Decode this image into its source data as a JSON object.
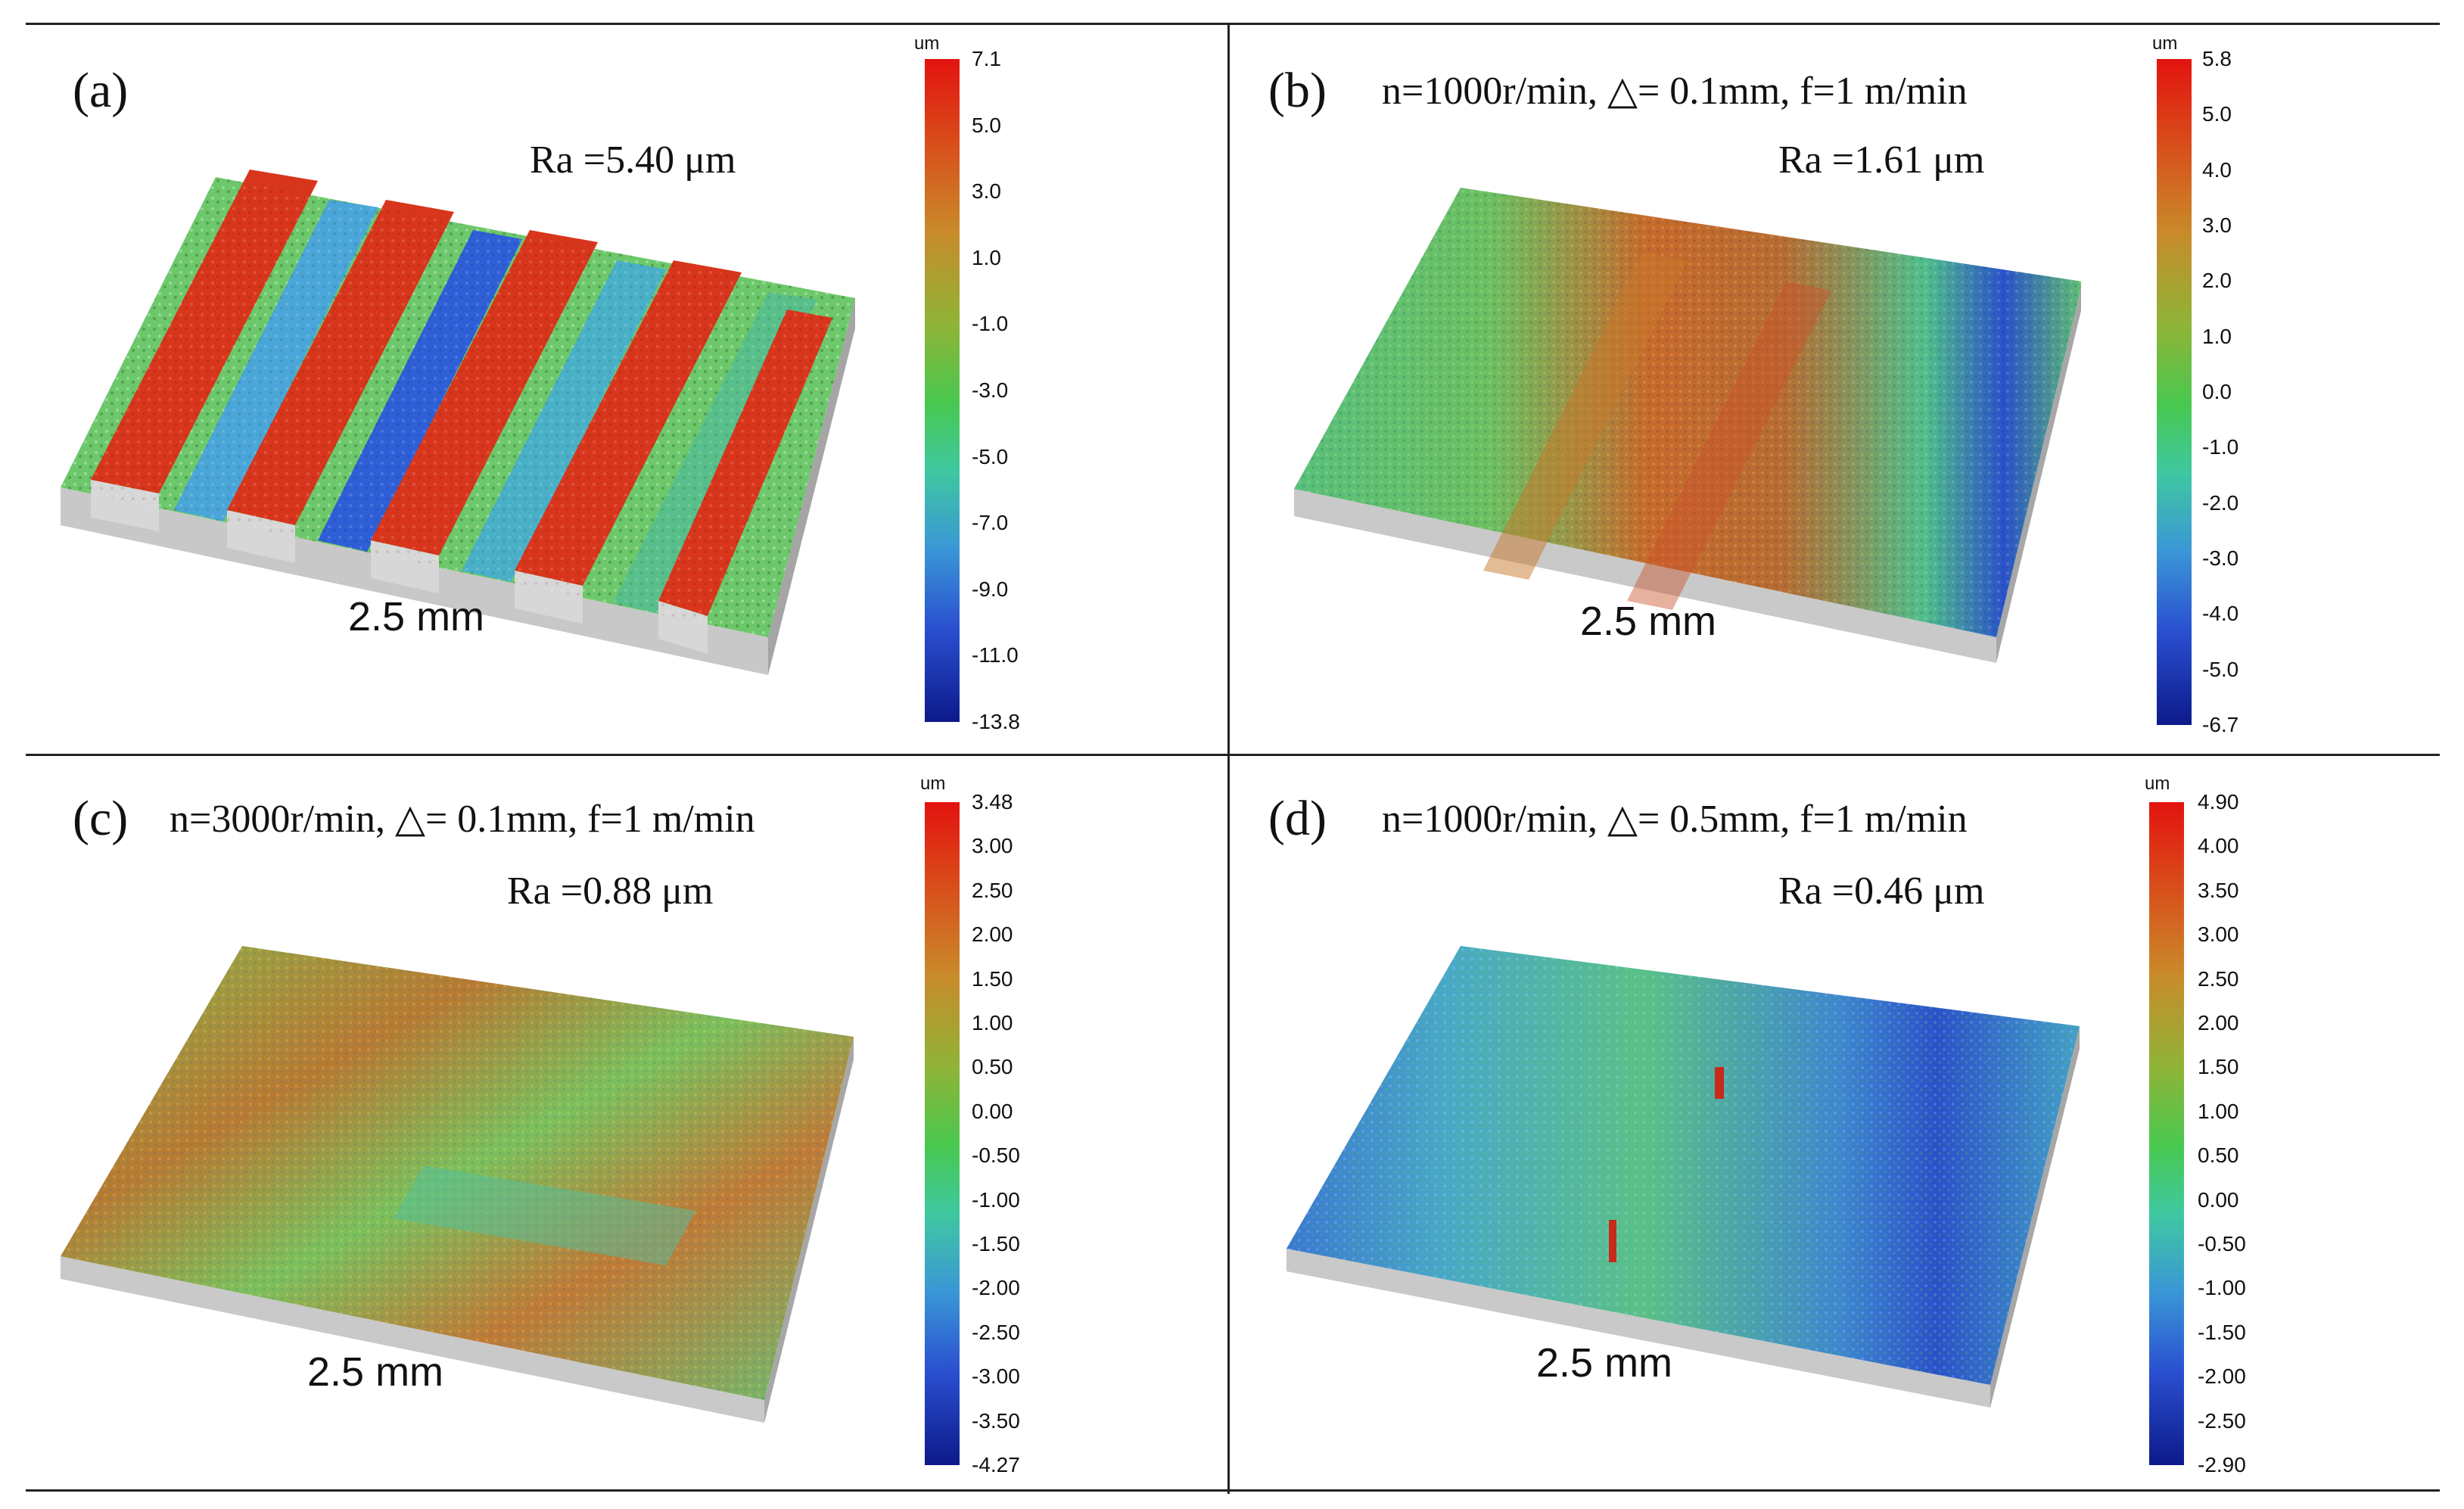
{
  "figure": {
    "panels": [
      {
        "label": "(a)",
        "params": "",
        "ra": "Ra =5.40 μm",
        "scale": "2.5 mm",
        "colorbar": {
          "unit": "um",
          "ticks": [
            "7.1",
            "5.0",
            "3.0",
            "1.0",
            "-1.0",
            "-3.0",
            "-5.0",
            "-7.0",
            "-9.0",
            "-11.0",
            "-13.8"
          ]
        }
      },
      {
        "label": "(b)",
        "params": "n=1000r/min, △= 0.1mm, f=1 m/min",
        "ra": "Ra =1.61 μm",
        "scale": "2.5 mm",
        "colorbar": {
          "unit": "um",
          "ticks": [
            "5.8",
            "5.0",
            "4.0",
            "3.0",
            "2.0",
            "1.0",
            "0.0",
            "-1.0",
            "-2.0",
            "-3.0",
            "-4.0",
            "-5.0",
            "-6.7"
          ]
        }
      },
      {
        "label": "(c)",
        "params": "n=3000r/min, △= 0.1mm, f=1 m/min",
        "ra": "Ra =0.88 μm",
        "scale": "2.5 mm",
        "colorbar": {
          "unit": "um",
          "ticks": [
            "3.48",
            "3.00",
            "2.50",
            "2.00",
            "1.50",
            "1.00",
            "0.50",
            "0.00",
            "-0.50",
            "-1.00",
            "-1.50",
            "-2.00",
            "-2.50",
            "-3.00",
            "-3.50",
            "-4.27"
          ]
        }
      },
      {
        "label": "(d)",
        "params": "n=1000r/min, △= 0.5mm, f=1 m/min",
        "ra": "Ra =0.46 μm",
        "scale": "2.5 mm",
        "colorbar": {
          "unit": "um",
          "ticks": [
            "4.90",
            "4.00",
            "3.50",
            "3.00",
            "2.50",
            "2.00",
            "1.50",
            "1.00",
            "0.50",
            "0.00",
            "-0.50",
            "-1.00",
            "-1.50",
            "-2.00",
            "-2.50",
            "-2.90"
          ]
        }
      }
    ]
  }
}
